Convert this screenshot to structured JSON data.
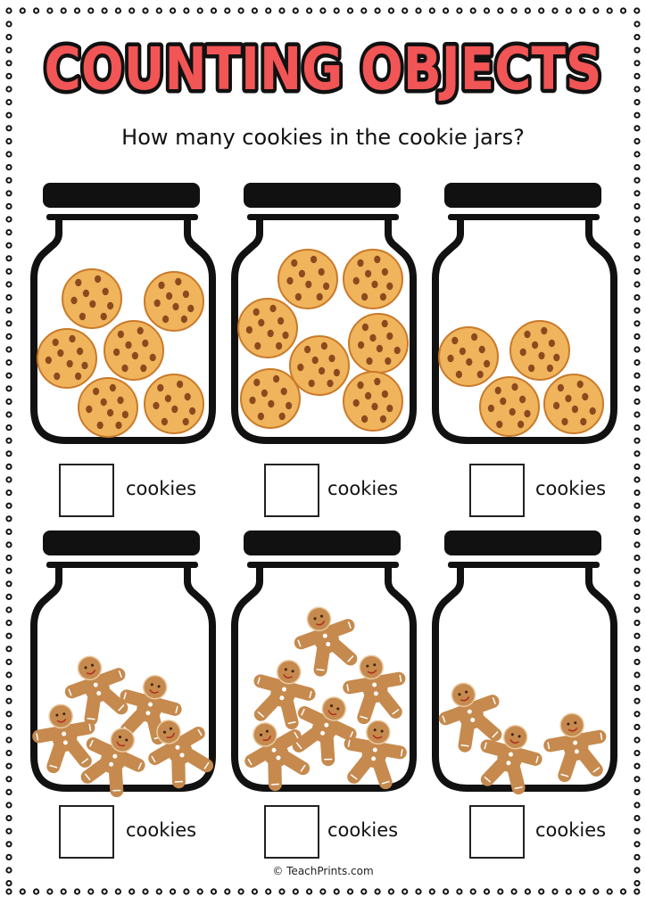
{
  "title": "COUNTING OBJECTS",
  "subtitle": "How many cookies in the cookie jars?",
  "footer": "© TeachPrints.com",
  "colors": {
    "title_fill": "#F25555",
    "title_outline": "#111111",
    "cookie": "#F0B45C",
    "chip": "#8B4A1E",
    "gingerbread": "#C68A4E",
    "jar_outline": "#111111"
  },
  "jars": [
    {
      "object": "chocolate-chip cookie",
      "count": 6,
      "label": "cookies"
    },
    {
      "object": "chocolate-chip cookie",
      "count": 7,
      "label": "cookies"
    },
    {
      "object": "chocolate-chip cookie",
      "count": 4,
      "label": "cookies"
    },
    {
      "object": "gingerbread man",
      "count": 5,
      "label": "cookies"
    },
    {
      "object": "gingerbread man",
      "count": 6,
      "label": "cookies"
    },
    {
      "object": "gingerbread man",
      "count": 3,
      "label": "cookies"
    }
  ]
}
